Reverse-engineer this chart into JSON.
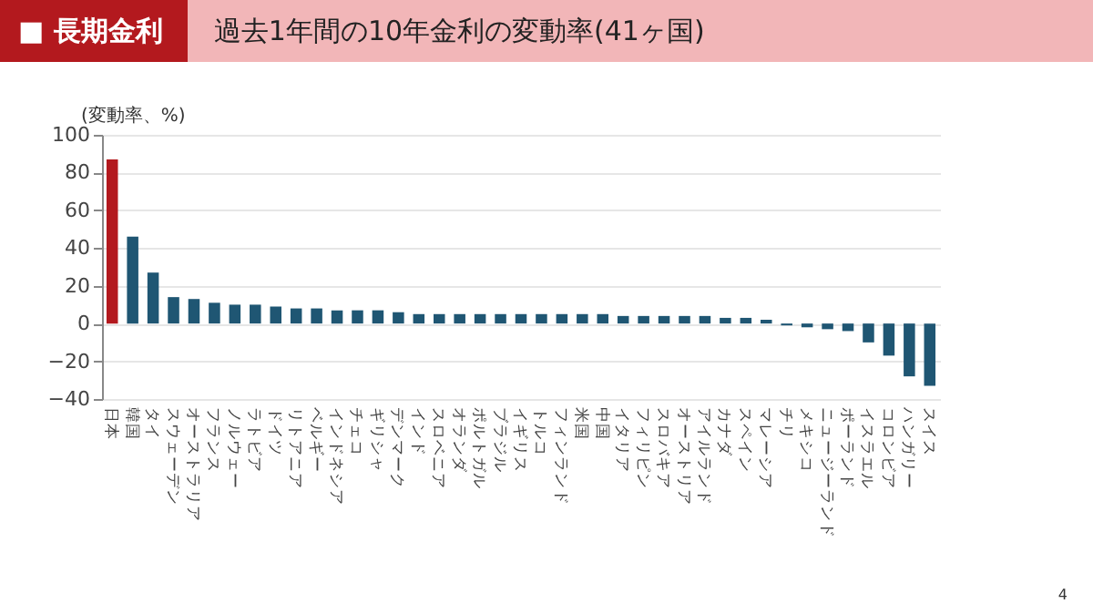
{
  "chart_data": {
    "type": "bar",
    "title": "過去1年間の10年金利の変動率(41ヶ国)",
    "ylabel": "(変動率、%)",
    "annotations": [
      "■ 長期金利",
      "4"
    ],
    "categories": [
      "日本",
      "韓国",
      "タイ",
      "スウェーデン",
      "オーストラリア",
      "フランス",
      "ノルウェー",
      "ラトビア",
      "ドイツ",
      "リトアニア",
      "ベルギー",
      "インドネシア",
      "チェコ",
      "ギリシャ",
      "デンマーク",
      "インド",
      "スロベニア",
      "オランダ",
      "ポルトガル",
      "ブラジル",
      "イギリス",
      "トルコ",
      "フィンランド",
      "米国",
      "中国",
      "イタリア",
      "フィリピン",
      "スロバキア",
      "オーストリア",
      "アイルランド",
      "カナダ",
      "スペイン",
      "マレーシア",
      "チリ",
      "メキシコ",
      "ニュージーランド",
      "ポーランド",
      "イスラエル",
      "コロンビア",
      "ハンガリー",
      "スイス"
    ],
    "values": [
      87,
      46,
      27,
      14,
      13,
      11,
      10,
      10,
      9,
      8,
      8,
      7,
      7,
      7,
      6,
      5,
      5,
      5,
      5,
      5,
      5,
      5,
      5,
      5,
      5,
      4,
      4,
      4,
      4,
      4,
      3,
      3,
      2,
      -1,
      -2,
      -3,
      -4,
      -10,
      -17,
      -28,
      -33
    ],
    "colors": [
      "#b3191e",
      "#1f5673",
      "#1f5673",
      "#1f5673",
      "#1f5673",
      "#1f5673",
      "#1f5673",
      "#1f5673",
      "#1f5673",
      "#1f5673",
      "#1f5673",
      "#1f5673",
      "#1f5673",
      "#1f5673",
      "#1f5673",
      "#1f5673",
      "#1f5673",
      "#1f5673",
      "#1f5673",
      "#1f5673",
      "#1f5673",
      "#1f5673",
      "#1f5673",
      "#1f5673",
      "#1f5673",
      "#1f5673",
      "#1f5673",
      "#1f5673",
      "#1f5673",
      "#1f5673",
      "#1f5673",
      "#1f5673",
      "#1f5673",
      "#1f5673",
      "#1f5673",
      "#1f5673",
      "#1f5673",
      "#1f5673",
      "#1f5673",
      "#1f5673",
      "#1f5673"
    ],
    "ylim": [
      -40,
      100
    ],
    "yticks": [
      -40,
      -20,
      0,
      20,
      40,
      60,
      80,
      100
    ],
    "grid": "y"
  }
}
